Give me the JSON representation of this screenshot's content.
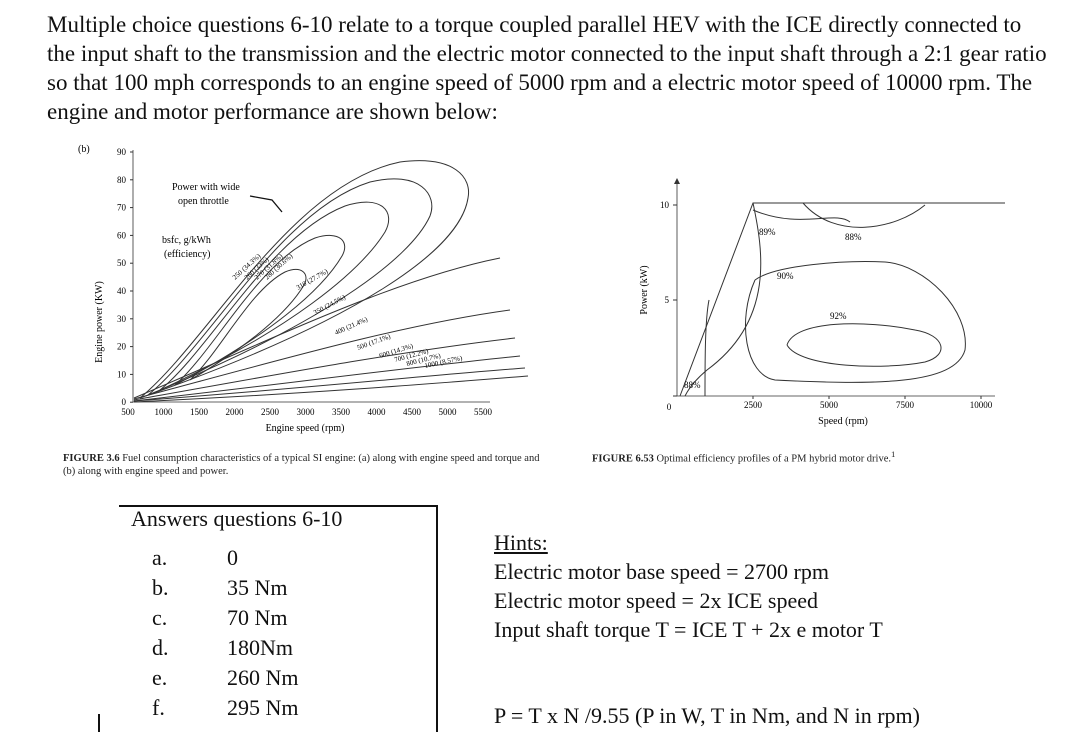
{
  "intro": "Multiple choice questions 6-10 relate to a torque coupled parallel HEV with the ICE directly connected to the input shaft to the transmission and the electric motor connected to the input shaft through a 2:1 gear ratio so that 100 mph corresponds to an engine speed of 5000 rpm and a electric motor speed of 10000 rpm.  The engine and motor performance are shown below:",
  "fig1": {
    "panel": "(b)",
    "ylabel": "Engine power (KW)",
    "xlabel": "Engine speed (rpm)",
    "yticks": [
      "90",
      "80",
      "70",
      "60",
      "50",
      "40",
      "30",
      "20",
      "10",
      "0"
    ],
    "xticks": [
      "500",
      "1000",
      "1500",
      "2000",
      "2500",
      "3000",
      "3500",
      "4000",
      "4500",
      "5000",
      "5500"
    ],
    "ann_power_1": "Power with wide",
    "ann_power_2": "open throttle",
    "ann_bsfc_1": "bsfc, g/kWh",
    "ann_bsfc_2": "(efficiency)",
    "contours": [
      "250 (34.3%)",
      "260 (33%)",
      "270 (31.8%)",
      "280 (30.6%)",
      "310 (27.7%)",
      "350 (24.5%)",
      "400 (21.4%)",
      "500 (17.1%)",
      "600 (14.3%)",
      "700 (12.2%)",
      "800 (10.7%)",
      "1000 (8.57%)"
    ],
    "caption_label": "FIGURE 3.6",
    "caption_text": "Fuel consumption characteristics of a typical SI engine: (a) along with engine speed and torque and (b) along with engine speed and power."
  },
  "fig2": {
    "ylabel": "Power (kW)",
    "xlabel": "Speed (rpm)",
    "yticks": [
      "10",
      "5",
      "0"
    ],
    "xticks": [
      "2500",
      "5000",
      "7500",
      "10000"
    ],
    "eff_89": "89%",
    "eff_88a": "88%",
    "eff_90": "90%",
    "eff_92": "92%",
    "eff_88b": "88%",
    "caption_label": "FIGURE 6.53",
    "caption_text": "Optimal efficiency profiles of a PM hybrid motor drive.",
    "caption_sup": "1"
  },
  "answers": {
    "title": "Answers questions 6-10",
    "items": [
      {
        "letter": "a.",
        "value": "0"
      },
      {
        "letter": "b.",
        "value": "35 Nm"
      },
      {
        "letter": "c.",
        "value": "70 Nm"
      },
      {
        "letter": "d.",
        "value": "180Nm"
      },
      {
        "letter": "e.",
        "value": "260 Nm"
      },
      {
        "letter": "f.",
        "value": "295 Nm"
      }
    ]
  },
  "hints": {
    "title": "Hints:",
    "line1": "Electric motor base speed = 2700 rpm",
    "line2": "Electric motor speed = 2x ICE speed",
    "line3": "Input shaft torque T = ICE T + 2x e motor T",
    "formula": "P = T x N /9.55 (P in W, T in Nm, and N in rpm)"
  }
}
